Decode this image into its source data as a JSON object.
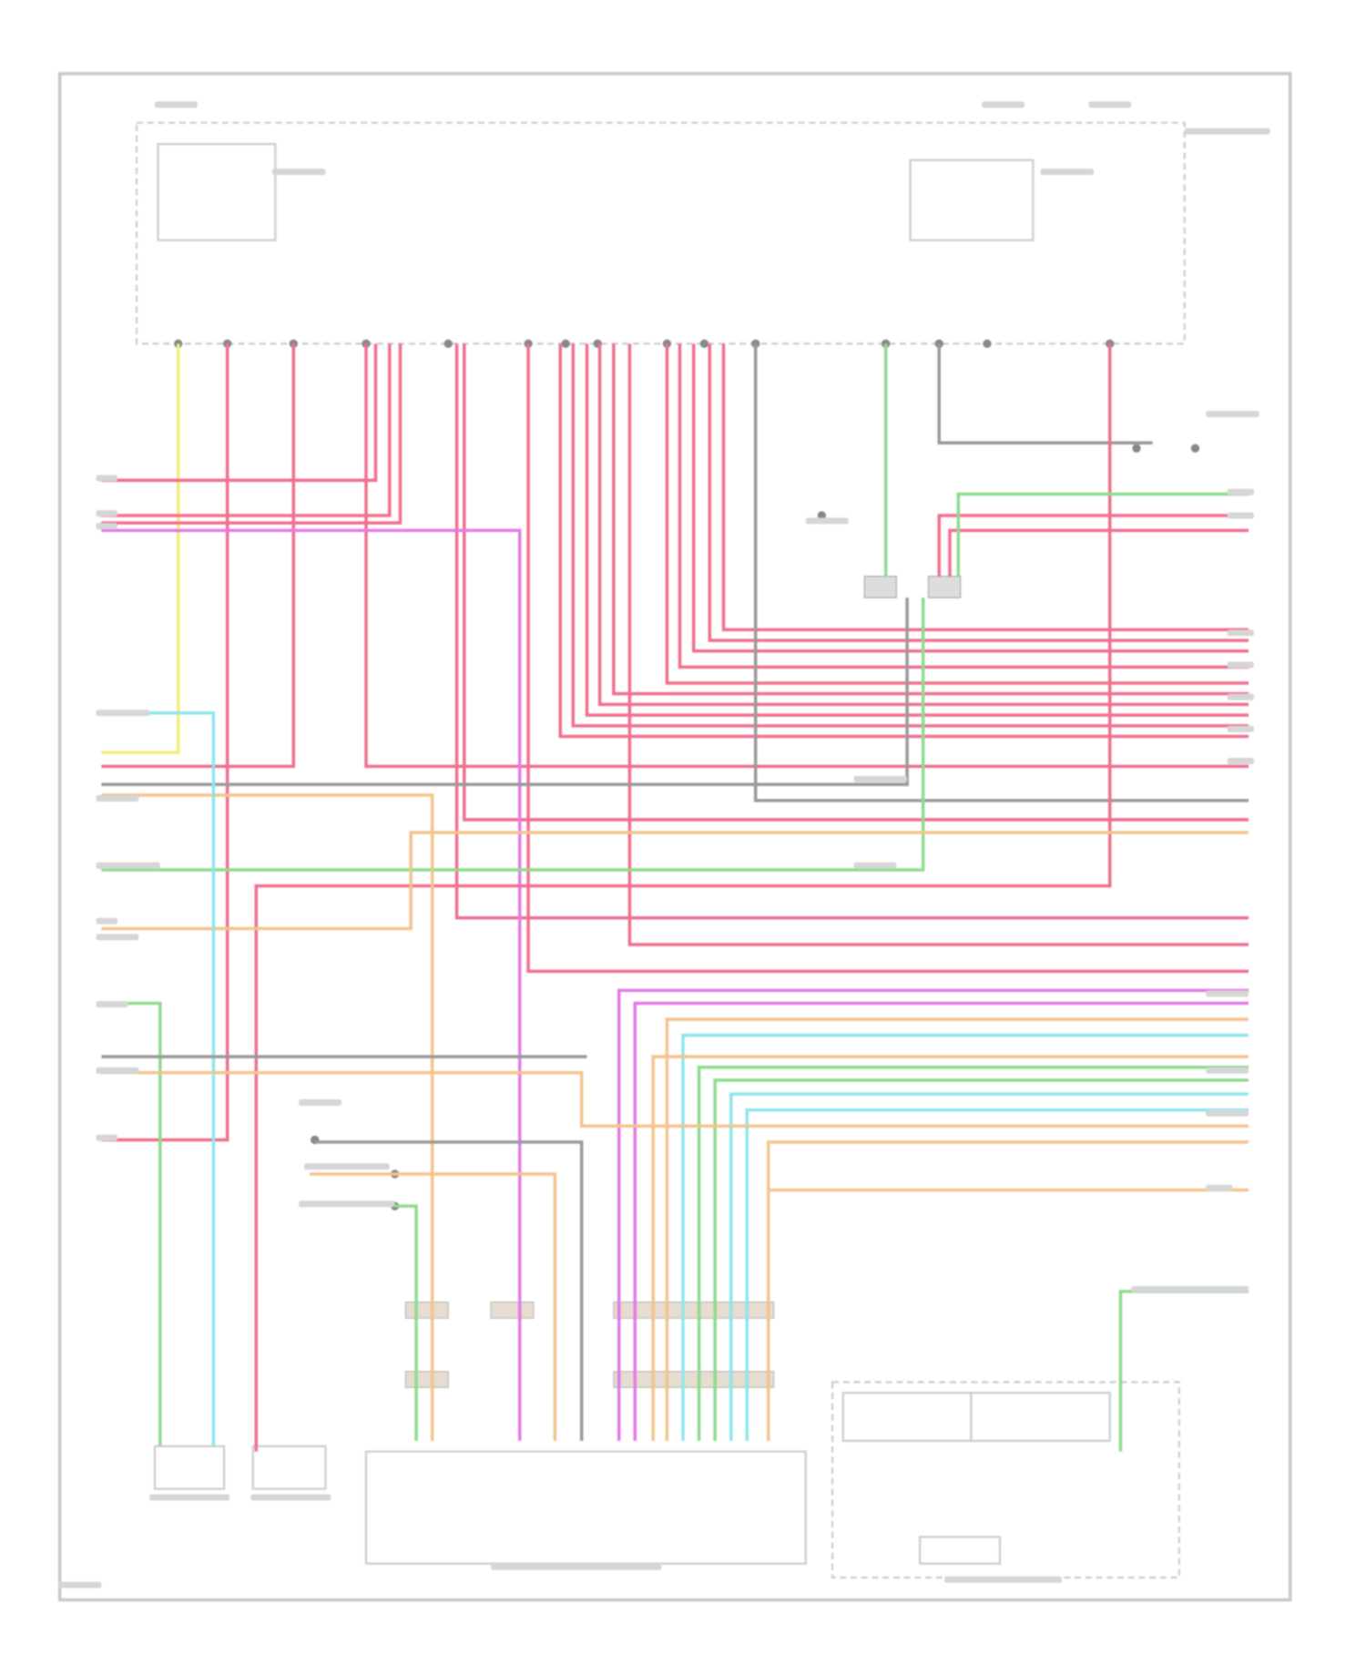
{
  "diagram": {
    "type": "wiring-schematic",
    "wire_colors": {
      "red": "#f0708e",
      "yellow": "#f2ee7a",
      "green": "#8fdb8f",
      "cyan": "#8ee6ec",
      "orange": "#f3c48e",
      "magenta": "#e47ae8",
      "gray": "#9a9a9a",
      "frame": "#c8c8c8"
    }
  }
}
